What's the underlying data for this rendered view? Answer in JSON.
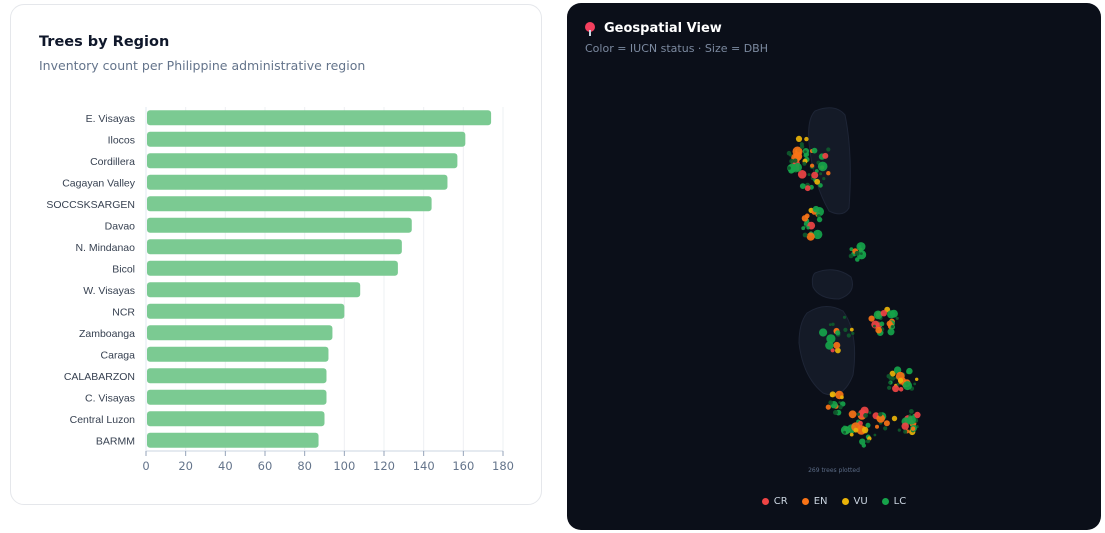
{
  "left_card": {
    "title": "Trees by Region",
    "subtitle": "Inventory count per Philippine administrative region"
  },
  "chart_data": {
    "type": "bar",
    "orientation": "horizontal",
    "title": "Trees by Region",
    "subtitle": "Inventory count per Philippine administrative region",
    "categories": [
      "E. Visayas",
      "Ilocos",
      "Cordillera",
      "Cagayan Valley",
      "SOCCSKSARGEN",
      "Davao",
      "N. Mindanao",
      "Bicol",
      "W. Visayas",
      "NCR",
      "Zamboanga",
      "Caraga",
      "CALABARZON",
      "C. Visayas",
      "Central Luzon",
      "BARMM"
    ],
    "values": [
      174,
      161,
      157,
      152,
      144,
      134,
      129,
      127,
      108,
      100,
      94,
      92,
      91,
      91,
      90,
      87
    ],
    "xlim": [
      0,
      180
    ],
    "xticks": [
      0,
      20,
      40,
      60,
      80,
      100,
      120,
      140,
      160,
      180
    ],
    "grid": true,
    "bar_color": "#7bca92"
  },
  "right_card": {
    "title": "Geospatial View",
    "subtitle": "Color = IUCN status · Size = DBH",
    "plotted_note": "269 trees plotted",
    "icon": "map-pin-icon",
    "legend": [
      {
        "label": "CR",
        "color": "#ef4444"
      },
      {
        "label": "EN",
        "color": "#f97316"
      },
      {
        "label": "VU",
        "color": "#eab308"
      },
      {
        "label": "LC",
        "color": "#16a34a"
      }
    ]
  }
}
